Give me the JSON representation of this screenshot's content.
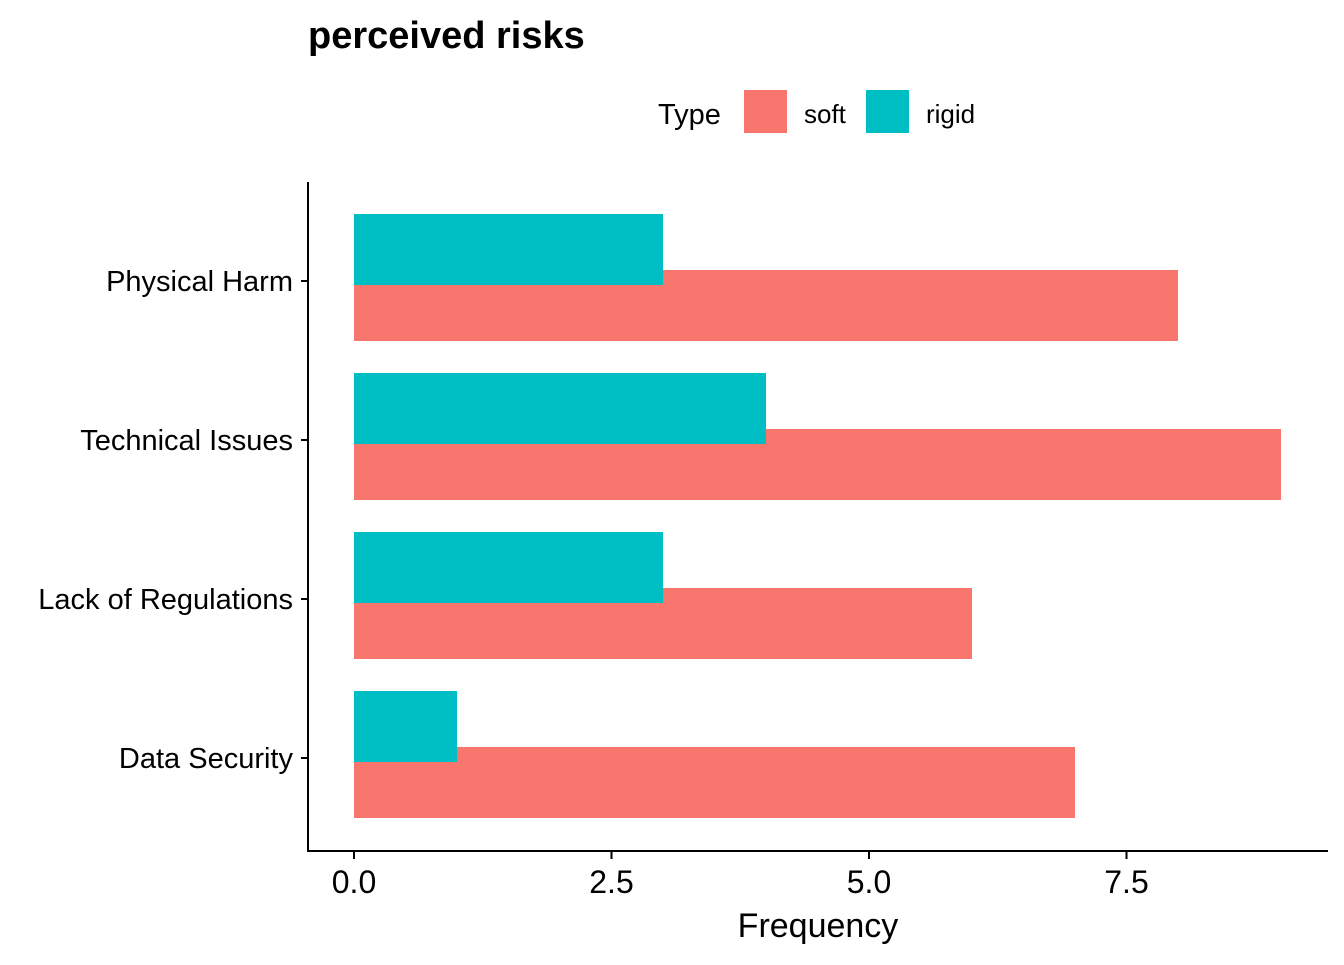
{
  "chart_data": {
    "type": "bar",
    "orientation": "horizontal",
    "title": "perceived risks",
    "xlabel": "Frequency",
    "ylabel": "",
    "categories": [
      "Physical Harm",
      "Technical Issues",
      "Lack of Regulations",
      "Data Security"
    ],
    "series": [
      {
        "name": "soft",
        "color": "#F8766D",
        "values": [
          8,
          9,
          6,
          7
        ]
      },
      {
        "name": "rigid",
        "color": "#00BFC4",
        "values": [
          3,
          4,
          3,
          1
        ]
      }
    ],
    "xlim": [
      0,
      9.45
    ],
    "x_ticks": [
      "0.0",
      "2.5",
      "5.0",
      "7.5"
    ],
    "x_tick_values": [
      0,
      2.5,
      5,
      7.5
    ],
    "legend": {
      "title": "Type",
      "position": "top"
    },
    "grid": false
  }
}
